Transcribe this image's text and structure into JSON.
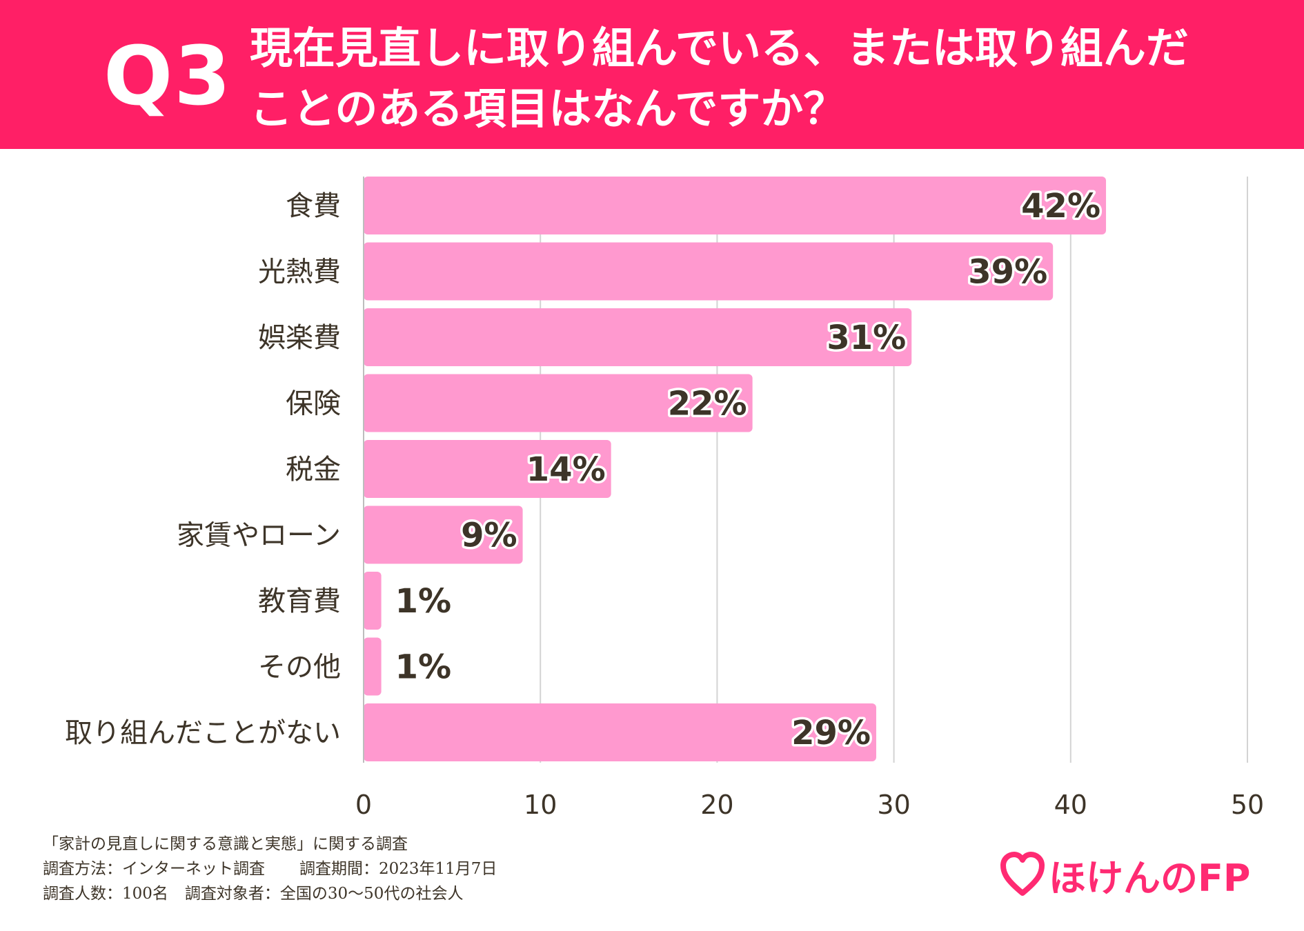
{
  "header": {
    "q_label": "Q3",
    "question_line1": "現在見直しに取り組んでいる、または取り組んだ",
    "question_line2": "ことのある項目はなんですか？",
    "bg_color": "#ff1f66"
  },
  "chart_data": {
    "type": "bar",
    "orientation": "horizontal",
    "title": "現在見直しに取り組んでいる、または取り組んだことのある項目はなんですか？",
    "categories": [
      "食費",
      "光熱費",
      "娯楽費",
      "保険",
      "税金",
      "家賃やローン",
      "教育費",
      "その他",
      "取り組んだことがない"
    ],
    "values": [
      42,
      39,
      31,
      22,
      14,
      9,
      1,
      1,
      29
    ],
    "value_labels": [
      "42%",
      "39%",
      "31%",
      "22%",
      "14%",
      "9%",
      "1%",
      "1%",
      "29%"
    ],
    "xlim": [
      0,
      50
    ],
    "xticks": [
      0,
      10,
      20,
      30,
      40,
      50
    ],
    "xlabel": "",
    "ylabel": "",
    "grid": true,
    "bar_color": "#ff99cf"
  },
  "footer": {
    "survey_title": "「家計の見直しに関する意識と実態」に関する調査",
    "method": "調査方法：インターネット調査",
    "period": "調査期間：2023年11月7日",
    "respondents": "調査人数：100名",
    "target": "調査対象者：全国の30〜50代の社会人"
  },
  "logo": {
    "text": "ほけんのFP",
    "icon": "heart-icon",
    "color": "#ff2a72"
  }
}
